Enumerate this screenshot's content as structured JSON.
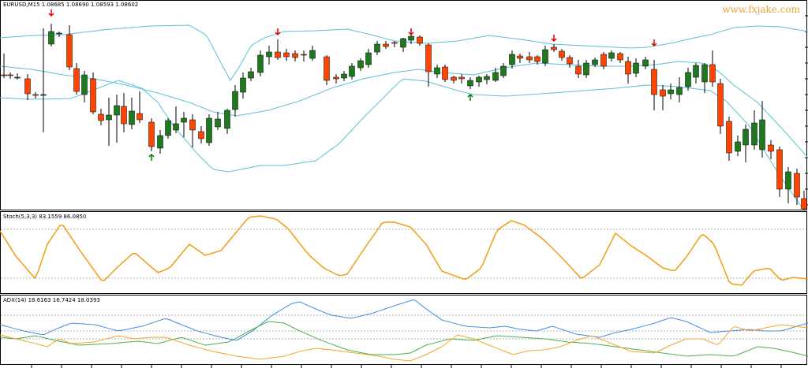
{
  "colors": {
    "bull": "#1f7a1f",
    "bear": "#ff4500",
    "band": "#5bc0d6",
    "stoch": "#f39c12",
    "adx": "#3d8fe0",
    "plus_di": "#4caf50",
    "minus_di": "#f5a623",
    "sell_arrow": "#e00000",
    "buy_arrow": "#008000",
    "watermark": "#e8a23a"
  },
  "main": {
    "header": "EURUSD,M15  1.08685 1.08690 1.08593 1.08602",
    "watermark": "www.fxjake.com",
    "chart_data": {
      "type": "candlestick",
      "symbol": "EURUSD",
      "timeframe": "M15",
      "open": 1.08685,
      "high": 1.0869,
      "low": 1.08593,
      "close": 1.08602,
      "indicators": [
        "Bollinger Bands",
        "Sell arrows",
        "Buy arrows"
      ],
      "sell_arrows_count": 5,
      "buy_arrows_count": 2
    }
  },
  "stoch": {
    "header": "Stoch(5,3,3) 83.1559 86.0850",
    "chart_data": {
      "type": "line",
      "name": "Stoch(5,3,3)",
      "main": 83.1559,
      "signal": 86.085,
      "levels": [
        80,
        20
      ]
    }
  },
  "adx": {
    "header": "ADX(14) 18.6163 16.7424 18.0393",
    "chart_data": {
      "type": "line",
      "name": "ADX(14)",
      "adx": 18.6163,
      "plus_di": 16.7424,
      "minus_di": 18.0393
    }
  }
}
